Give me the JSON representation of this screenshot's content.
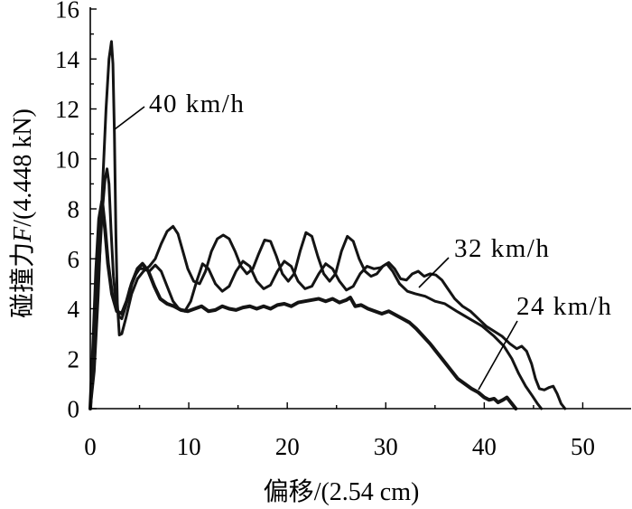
{
  "chart_data": {
    "type": "line",
    "xlabel": {
      "text": "偏移",
      "unit": "/(2.54 cm)"
    },
    "ylabel": {
      "text": "碰撞力",
      "symbol": "F",
      "unit": "/(4.448 kN)"
    },
    "xlim": [
      0,
      55
    ],
    "ylim": [
      0,
      16
    ],
    "x_ticks": [
      0,
      10,
      20,
      30,
      40,
      50
    ],
    "y_ticks": [
      0,
      2,
      4,
      6,
      8,
      10,
      12,
      14,
      16
    ],
    "grid": false,
    "legend": "none (series labelled by annotations with leader lines)",
    "series": [
      {
        "name": "40 km/h",
        "points": [
          [
            0,
            0
          ],
          [
            0.4,
            1.5
          ],
          [
            0.8,
            4.5
          ],
          [
            1.2,
            8.5
          ],
          [
            1.6,
            12
          ],
          [
            1.9,
            14
          ],
          [
            2.15,
            14.7
          ],
          [
            2.3,
            13.8
          ],
          [
            2.45,
            11
          ],
          [
            2.6,
            7
          ],
          [
            2.75,
            4.2
          ],
          [
            2.95,
            2.95
          ],
          [
            3.2,
            3.0
          ],
          [
            3.6,
            3.6
          ],
          [
            4.2,
            4.6
          ],
          [
            4.8,
            5.2
          ],
          [
            5.4,
            5.5
          ],
          [
            6.0,
            5.7
          ],
          [
            6.6,
            6.0
          ],
          [
            7.2,
            6.6
          ],
          [
            7.8,
            7.1
          ],
          [
            8.4,
            7.3
          ],
          [
            8.9,
            7.0
          ],
          [
            9.4,
            6.3
          ],
          [
            9.9,
            5.6
          ],
          [
            10.5,
            5.1
          ],
          [
            11.1,
            5.0
          ],
          [
            11.7,
            5.5
          ],
          [
            12.3,
            6.3
          ],
          [
            12.9,
            6.8
          ],
          [
            13.5,
            6.95
          ],
          [
            14.1,
            6.8
          ],
          [
            14.7,
            6.3
          ],
          [
            15.3,
            5.7
          ],
          [
            15.9,
            5.4
          ],
          [
            16.5,
            5.6
          ],
          [
            17.1,
            6.2
          ],
          [
            17.7,
            6.75
          ],
          [
            18.3,
            6.7
          ],
          [
            18.9,
            6.1
          ],
          [
            19.5,
            5.4
          ],
          [
            20.1,
            5.1
          ],
          [
            20.7,
            5.4
          ],
          [
            21.3,
            6.3
          ],
          [
            21.9,
            7.05
          ],
          [
            22.5,
            6.9
          ],
          [
            23.1,
            6.1
          ],
          [
            23.7,
            5.4
          ],
          [
            24.3,
            5.1
          ],
          [
            24.9,
            5.4
          ],
          [
            25.5,
            6.3
          ],
          [
            26.1,
            6.9
          ],
          [
            26.7,
            6.7
          ],
          [
            27.3,
            6.0
          ],
          [
            27.9,
            5.5
          ],
          [
            28.5,
            5.3
          ],
          [
            29.1,
            5.4
          ],
          [
            29.7,
            5.7
          ],
          [
            30.3,
            5.85
          ],
          [
            30.9,
            5.6
          ],
          [
            31.5,
            5.2
          ],
          [
            32.1,
            5.15
          ],
          [
            32.7,
            5.4
          ],
          [
            33.3,
            5.5
          ],
          [
            33.9,
            5.3
          ],
          [
            34.5,
            5.4
          ],
          [
            35.1,
            5.35
          ],
          [
            35.7,
            5.15
          ],
          [
            36.3,
            4.8
          ],
          [
            37.0,
            4.4
          ],
          [
            37.8,
            4.1
          ],
          [
            38.6,
            3.9
          ],
          [
            39.4,
            3.6
          ],
          [
            40.2,
            3.3
          ],
          [
            41.0,
            3.1
          ],
          [
            41.8,
            2.9
          ],
          [
            42.6,
            2.6
          ],
          [
            43.3,
            2.4
          ],
          [
            43.8,
            2.5
          ],
          [
            44.3,
            2.3
          ],
          [
            44.8,
            1.8
          ],
          [
            45.2,
            1.2
          ],
          [
            45.6,
            0.8
          ],
          [
            46.1,
            0.75
          ],
          [
            46.6,
            0.85
          ],
          [
            47.0,
            0.9
          ],
          [
            47.4,
            0.6
          ],
          [
            47.8,
            0.2
          ],
          [
            48.2,
            0
          ]
        ]
      },
      {
        "name": "32 km/h",
        "points": [
          [
            0,
            0
          ],
          [
            0.4,
            2
          ],
          [
            0.8,
            5
          ],
          [
            1.2,
            7.8
          ],
          [
            1.5,
            9.2
          ],
          [
            1.7,
            9.6
          ],
          [
            1.9,
            9.0
          ],
          [
            2.1,
            7.2
          ],
          [
            2.35,
            5.3
          ],
          [
            2.6,
            4.3
          ],
          [
            2.9,
            3.7
          ],
          [
            3.2,
            3.6
          ],
          [
            3.6,
            4.1
          ],
          [
            4.0,
            4.8
          ],
          [
            4.5,
            5.3
          ],
          [
            5.0,
            5.6
          ],
          [
            5.5,
            5.6
          ],
          [
            6.0,
            5.5
          ],
          [
            6.6,
            5.75
          ],
          [
            7.2,
            5.5
          ],
          [
            7.8,
            4.9
          ],
          [
            8.4,
            4.3
          ],
          [
            9.0,
            4.0
          ],
          [
            9.6,
            3.9
          ],
          [
            10.2,
            4.3
          ],
          [
            10.8,
            5.1
          ],
          [
            11.4,
            5.8
          ],
          [
            12.0,
            5.6
          ],
          [
            12.7,
            5.0
          ],
          [
            13.4,
            4.7
          ],
          [
            14.1,
            4.9
          ],
          [
            14.8,
            5.5
          ],
          [
            15.5,
            5.9
          ],
          [
            16.2,
            5.7
          ],
          [
            16.9,
            5.1
          ],
          [
            17.6,
            4.8
          ],
          [
            18.3,
            4.95
          ],
          [
            19.0,
            5.5
          ],
          [
            19.7,
            5.9
          ],
          [
            20.4,
            5.7
          ],
          [
            21.1,
            5.1
          ],
          [
            21.8,
            4.8
          ],
          [
            22.5,
            4.9
          ],
          [
            23.2,
            5.4
          ],
          [
            23.9,
            5.8
          ],
          [
            24.6,
            5.6
          ],
          [
            25.3,
            5.1
          ],
          [
            26.0,
            4.75
          ],
          [
            26.7,
            4.9
          ],
          [
            27.4,
            5.4
          ],
          [
            28.1,
            5.7
          ],
          [
            28.8,
            5.6
          ],
          [
            29.5,
            5.65
          ],
          [
            30.1,
            5.8
          ],
          [
            30.7,
            5.5
          ],
          [
            31.4,
            5.0
          ],
          [
            32.2,
            4.7
          ],
          [
            33.0,
            4.6
          ],
          [
            34.0,
            4.5
          ],
          [
            35.0,
            4.3
          ],
          [
            36.0,
            4.2
          ],
          [
            37.2,
            3.9
          ],
          [
            38.5,
            3.6
          ],
          [
            39.8,
            3.3
          ],
          [
            41.0,
            2.9
          ],
          [
            42.0,
            2.5
          ],
          [
            42.8,
            2.0
          ],
          [
            43.5,
            1.4
          ],
          [
            44.2,
            0.9
          ],
          [
            44.9,
            0.5
          ],
          [
            45.4,
            0.2
          ],
          [
            45.8,
            0
          ]
        ]
      },
      {
        "name": "24 km/h",
        "points": [
          [
            0,
            0
          ],
          [
            0.3,
            2.5
          ],
          [
            0.6,
            5.5
          ],
          [
            0.9,
            7.6
          ],
          [
            1.2,
            8.3
          ],
          [
            1.5,
            7.2
          ],
          [
            1.8,
            5.8
          ],
          [
            2.2,
            4.6
          ],
          [
            2.7,
            3.9
          ],
          [
            3.2,
            3.8
          ],
          [
            3.7,
            4.3
          ],
          [
            4.2,
            5.0
          ],
          [
            4.8,
            5.6
          ],
          [
            5.3,
            5.8
          ],
          [
            5.9,
            5.5
          ],
          [
            6.5,
            4.9
          ],
          [
            7.1,
            4.4
          ],
          [
            7.8,
            4.2
          ],
          [
            8.5,
            4.1
          ],
          [
            9.2,
            3.95
          ],
          [
            9.9,
            3.9
          ],
          [
            10.6,
            4.0
          ],
          [
            11.3,
            4.1
          ],
          [
            12.0,
            3.9
          ],
          [
            12.7,
            3.95
          ],
          [
            13.4,
            4.1
          ],
          [
            14.1,
            4.0
          ],
          [
            14.8,
            3.95
          ],
          [
            15.5,
            4.05
          ],
          [
            16.2,
            4.1
          ],
          [
            16.9,
            4.0
          ],
          [
            17.6,
            4.1
          ],
          [
            18.3,
            4.0
          ],
          [
            19.0,
            4.15
          ],
          [
            19.7,
            4.2
          ],
          [
            20.4,
            4.1
          ],
          [
            21.1,
            4.25
          ],
          [
            21.8,
            4.3
          ],
          [
            22.5,
            4.35
          ],
          [
            23.2,
            4.4
          ],
          [
            23.9,
            4.3
          ],
          [
            24.6,
            4.4
          ],
          [
            25.3,
            4.25
          ],
          [
            26.0,
            4.35
          ],
          [
            26.4,
            4.45
          ],
          [
            26.9,
            4.1
          ],
          [
            27.5,
            4.15
          ],
          [
            28.2,
            4.0
          ],
          [
            28.9,
            3.9
          ],
          [
            29.6,
            3.8
          ],
          [
            30.3,
            3.9
          ],
          [
            31.0,
            3.75
          ],
          [
            31.7,
            3.6
          ],
          [
            32.4,
            3.45
          ],
          [
            33.1,
            3.2
          ],
          [
            33.8,
            2.9
          ],
          [
            34.5,
            2.6
          ],
          [
            35.2,
            2.25
          ],
          [
            35.9,
            1.9
          ],
          [
            36.6,
            1.55
          ],
          [
            37.3,
            1.2
          ],
          [
            38.0,
            1.0
          ],
          [
            38.7,
            0.8
          ],
          [
            39.4,
            0.65
          ],
          [
            40.0,
            0.45
          ],
          [
            40.5,
            0.35
          ],
          [
            41.0,
            0.4
          ],
          [
            41.4,
            0.25
          ],
          [
            41.9,
            0.35
          ],
          [
            42.3,
            0.45
          ],
          [
            42.7,
            0.25
          ],
          [
            43.0,
            0.1
          ],
          [
            43.2,
            0
          ]
        ]
      }
    ]
  }
}
